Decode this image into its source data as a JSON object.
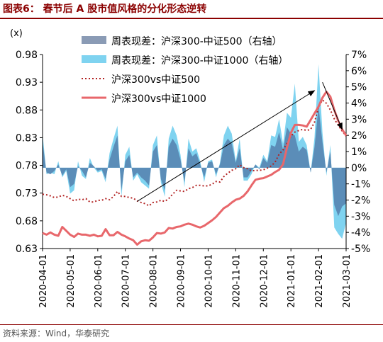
{
  "header": {
    "title": "图表6： 春节后 A 股市值风格的分化形态逆转"
  },
  "footer": {
    "source": "资料来源：Wind，华泰研究"
  },
  "colors": {
    "title": "#8B0000",
    "bar500": "#5B8DB8",
    "bar500_alt": "#8A9BB5",
    "bar1000": "#7FD3F0",
    "line500": "#B22222",
    "line1000": "#E8676B",
    "arrow": "#000000"
  },
  "chart_data": {
    "type": "bar+line",
    "left_axis": {
      "label": "(x)",
      "min": 0.63,
      "max": 0.98,
      "ticks": [
        "0.98",
        "0.93",
        "0.88",
        "0.83",
        "0.78",
        "0.73",
        "0.68",
        "0.63"
      ]
    },
    "right_axis": {
      "min": -5,
      "max": 7,
      "ticks": [
        "7%",
        "6%",
        "5%",
        "4%",
        "3%",
        "2%",
        "1%",
        "0%",
        "-1%",
        "-2%",
        "-3%",
        "-4%",
        "-5%"
      ]
    },
    "x_tick_labels": [
      "2020-04-01",
      "2020-05-01",
      "2020-06-01",
      "2020-07-01",
      "2020-08-01",
      "2020-09-01",
      "2020-10-01",
      "2020-11-01",
      "2020-12-01",
      "2021-01-01",
      "2021-02-01",
      "2021-03-01"
    ],
    "legend": [
      {
        "label": "周表现差：沪深300-中证500（右轴）",
        "kind": "bar",
        "color": "#8A9BB5"
      },
      {
        "label": "周表现差：沪深300-中证1000（右轴）",
        "kind": "bar",
        "color": "#7FD3F0"
      },
      {
        "label": "沪深300vs中证500",
        "kind": "dotted",
        "color": "#B22222"
      },
      {
        "label": "沪深300vs中证1000",
        "kind": "solid",
        "color": "#E8676B"
      }
    ],
    "series": [
      {
        "name": "周表现差：沪深300-中证500（右轴）",
        "axis": "right",
        "values": [
          1.6,
          -0.3,
          -0.4,
          -0.2,
          0.2,
          -0.5,
          -0.1,
          -1.2,
          -1.0,
          0.1,
          -0.2,
          -0.6,
          0.3,
          0.1,
          -0.2,
          -0.1,
          -0.7,
          0.5,
          1.3,
          2.0,
          -1.4,
          0.4,
          0.8,
          -0.6,
          -0.3,
          -0.6,
          -0.8,
          -1.1,
          1.0,
          1.4,
          -0.7,
          -1.4,
          1.3,
          1.8,
          1.4,
          0.5,
          -0.9,
          1.2,
          0.7,
          0.9,
          0.2,
          -0.6,
          0.3,
          0.4,
          -0.4,
          0.2,
          1.4,
          1.8,
          1.5,
          0.3,
          1.2,
          -0.6,
          -0.6,
          -0.2,
          0.2,
          -0.1,
          0.6,
          0.3,
          1.4,
          1.3,
          2.2,
          1.1,
          2.5,
          2.1,
          2.0,
          1.0,
          1.3,
          1.1,
          -0.3,
          1.3,
          3.8,
          1.6,
          -0.3,
          1.0,
          -2.3,
          -3.0,
          -2.4,
          -2.2
        ]
      },
      {
        "name": "周表现差：沪深300-中证1000（右轴）",
        "axis": "right",
        "values": [
          2.1,
          -0.4,
          -0.3,
          -0.4,
          0.4,
          -0.6,
          -0.2,
          -1.6,
          -1.4,
          0.4,
          -0.5,
          -0.7,
          0.6,
          0.0,
          -0.3,
          -0.2,
          -0.9,
          0.9,
          1.8,
          2.6,
          -1.8,
          0.8,
          1.3,
          -0.8,
          -0.4,
          -0.9,
          -1.1,
          -1.3,
          1.4,
          2.0,
          -0.9,
          -1.8,
          1.8,
          2.6,
          2.0,
          0.8,
          -1.2,
          1.8,
          1.0,
          1.2,
          0.4,
          -0.9,
          0.4,
          0.5,
          -0.6,
          0.3,
          2.0,
          2.6,
          2.1,
          0.4,
          1.8,
          -0.8,
          -0.8,
          -0.4,
          0.2,
          0.0,
          0.8,
          0.4,
          2.0,
          1.9,
          3.0,
          1.5,
          3.4,
          3.1,
          5.2,
          1.6,
          1.9,
          1.4,
          -0.3,
          1.9,
          6.4,
          2.2,
          -0.5,
          1.4,
          -3.7,
          -4.1,
          -4.4,
          -3.4
        ]
      },
      {
        "name": "沪深300vs中证500",
        "axis": "left",
        "values": [
          0.728,
          0.727,
          0.725,
          0.722,
          0.723,
          0.726,
          0.724,
          0.72,
          0.716,
          0.719,
          0.718,
          0.72,
          0.714,
          0.714,
          0.717,
          0.717,
          0.72,
          0.718,
          0.724,
          0.733,
          0.724,
          0.724,
          0.722,
          0.721,
          0.716,
          0.713,
          0.711,
          0.707,
          0.713,
          0.714,
          0.717,
          0.715,
          0.72,
          0.728,
          0.735,
          0.734,
          0.733,
          0.738,
          0.74,
          0.744,
          0.744,
          0.743,
          0.743,
          0.746,
          0.751,
          0.75,
          0.76,
          0.766,
          0.771,
          0.774,
          0.781,
          0.776,
          0.774,
          0.77,
          0.771,
          0.771,
          0.772,
          0.775,
          0.779,
          0.786,
          0.8,
          0.808,
          0.82,
          0.833,
          0.84,
          0.843,
          0.845,
          0.843,
          0.845,
          0.858,
          0.885,
          0.898,
          0.892,
          0.88,
          0.864,
          0.852,
          0.842,
          0.833
        ]
      },
      {
        "name": "沪深300vs中证1000",
        "axis": "left",
        "values": [
          0.658,
          0.655,
          0.659,
          0.655,
          0.653,
          0.669,
          0.662,
          0.655,
          0.651,
          0.657,
          0.655,
          0.655,
          0.653,
          0.655,
          0.652,
          0.653,
          0.665,
          0.654,
          0.654,
          0.66,
          0.655,
          0.652,
          0.648,
          0.645,
          0.637,
          0.643,
          0.645,
          0.644,
          0.65,
          0.658,
          0.657,
          0.659,
          0.667,
          0.666,
          0.669,
          0.67,
          0.673,
          0.675,
          0.673,
          0.67,
          0.668,
          0.671,
          0.676,
          0.681,
          0.687,
          0.695,
          0.703,
          0.707,
          0.713,
          0.718,
          0.72,
          0.725,
          0.733,
          0.744,
          0.754,
          0.756,
          0.757,
          0.76,
          0.763,
          0.768,
          0.772,
          0.782,
          0.812,
          0.839,
          0.853,
          0.853,
          0.852,
          0.85,
          0.862,
          0.874,
          0.886,
          0.902,
          0.913,
          0.904,
          0.88,
          0.86,
          0.845,
          0.834
        ]
      }
    ],
    "annotations": [
      {
        "kind": "arrow",
        "from": {
          "x_index": 24,
          "y_left": 0.715
        },
        "to": {
          "x_index": 69,
          "y_left": 0.915
        }
      },
      {
        "kind": "arrow",
        "from": {
          "x_index": 71,
          "y_left": 0.93
        },
        "to": {
          "x_index": 76,
          "y_left": 0.845
        }
      }
    ]
  }
}
